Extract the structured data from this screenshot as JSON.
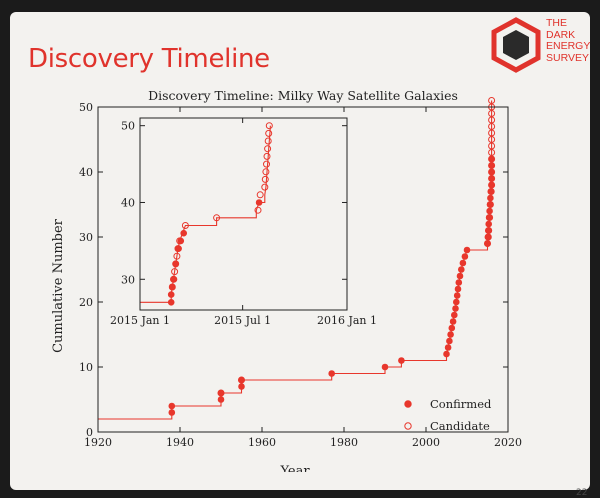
{
  "slide": {
    "title": "Discovery Timeline",
    "logo_text": "THE\nDARK\nENERGY\nSURVEY",
    "page_number": "22"
  },
  "colors": {
    "accent": "#e0332c",
    "series": "#e8372c"
  },
  "chart_data": [
    {
      "type": "line",
      "title": "Discovery Timeline: Milky Way Satellite Galaxies",
      "xlabel": "Year",
      "ylabel": "Cumulative Number",
      "xlim": [
        1920,
        2020
      ],
      "ylim": [
        0,
        50
      ],
      "xticks": [
        1920,
        1940,
        1960,
        1980,
        2000,
        2020
      ],
      "yticks": [
        0,
        10,
        20,
        30,
        40,
        50
      ],
      "legend": "bottom-right",
      "step": [
        [
          1920,
          2
        ],
        [
          1938,
          2
        ],
        [
          1938,
          4
        ],
        [
          1950,
          4
        ],
        [
          1950,
          6
        ],
        [
          1955,
          6
        ],
        [
          1955,
          8
        ],
        [
          1977,
          8
        ],
        [
          1977,
          9
        ],
        [
          1990,
          9
        ],
        [
          1990,
          10
        ],
        [
          1994,
          10
        ],
        [
          1994,
          11
        ],
        [
          2005,
          11
        ],
        [
          2005,
          12
        ],
        [
          2005.4,
          13
        ],
        [
          2005.7,
          14
        ],
        [
          2006,
          15
        ],
        [
          2006.3,
          16
        ],
        [
          2006.6,
          17
        ],
        [
          2006.9,
          18
        ],
        [
          2007.2,
          19
        ],
        [
          2007.4,
          20
        ],
        [
          2007.6,
          21
        ],
        [
          2007.8,
          22
        ],
        [
          2008,
          23
        ],
        [
          2008.3,
          24
        ],
        [
          2008.6,
          25
        ],
        [
          2009,
          26
        ],
        [
          2009.5,
          27
        ],
        [
          2010,
          28
        ],
        [
          2015,
          28
        ],
        [
          2015,
          29
        ],
        [
          2015.2,
          30
        ],
        [
          2015.3,
          31
        ],
        [
          2015.4,
          32
        ],
        [
          2015.5,
          33
        ],
        [
          2015.6,
          34
        ],
        [
          2015.7,
          35
        ],
        [
          2015.8,
          36
        ],
        [
          2015.9,
          37
        ],
        [
          2016,
          38
        ],
        [
          2016,
          39
        ],
        [
          2016,
          40
        ],
        [
          2016,
          41
        ],
        [
          2016,
          42
        ],
        [
          2016,
          43
        ],
        [
          2016,
          44
        ],
        [
          2016,
          45
        ],
        [
          2016,
          46
        ],
        [
          2016,
          47
        ],
        [
          2016,
          48
        ],
        [
          2016,
          49
        ],
        [
          2016,
          50
        ],
        [
          2016,
          51
        ]
      ],
      "series": [
        {
          "name": "Confirmed",
          "marker": "filled",
          "points": [
            [
              1938,
              3
            ],
            [
              1938,
              4
            ],
            [
              1950,
              5
            ],
            [
              1950,
              6
            ],
            [
              1955,
              7
            ],
            [
              1955,
              8
            ],
            [
              1977,
              9
            ],
            [
              1990,
              10
            ],
            [
              1994,
              11
            ],
            [
              2005,
              12
            ],
            [
              2005.4,
              13
            ],
            [
              2005.7,
              14
            ],
            [
              2006,
              15
            ],
            [
              2006.3,
              16
            ],
            [
              2006.6,
              17
            ],
            [
              2006.9,
              18
            ],
            [
              2007.2,
              19
            ],
            [
              2007.4,
              20
            ],
            [
              2007.6,
              21
            ],
            [
              2007.8,
              22
            ],
            [
              2008,
              23
            ],
            [
              2008.3,
              24
            ],
            [
              2008.6,
              25
            ],
            [
              2009,
              26
            ],
            [
              2009.5,
              27
            ],
            [
              2010,
              28
            ],
            [
              2015,
              29
            ],
            [
              2015.1,
              30
            ],
            [
              2015.2,
              31
            ],
            [
              2015.3,
              32
            ],
            [
              2015.4,
              33
            ],
            [
              2015.5,
              34
            ],
            [
              2015.6,
              35
            ],
            [
              2015.7,
              36
            ],
            [
              2015.8,
              37
            ],
            [
              2016,
              38
            ],
            [
              2016,
              39
            ],
            [
              2016,
              40
            ],
            [
              2016,
              41
            ],
            [
              2016,
              42
            ]
          ]
        },
        {
          "name": "Candidate",
          "marker": "open",
          "points": [
            [
              1950,
              6
            ],
            [
              1955,
              8
            ],
            [
              2015,
              29
            ],
            [
              2015.2,
              30
            ],
            [
              2015.3,
              31
            ],
            [
              2015.5,
              33
            ],
            [
              2015.7,
              35
            ],
            [
              2015.9,
              37
            ],
            [
              2016,
              38
            ],
            [
              2016,
              39
            ],
            [
              2016,
              40
            ],
            [
              2016,
              41
            ],
            [
              2016,
              42
            ],
            [
              2016,
              43
            ],
            [
              2016,
              44
            ],
            [
              2016,
              45
            ],
            [
              2016,
              46
            ],
            [
              2016,
              47
            ],
            [
              2016,
              48
            ],
            [
              2016,
              49
            ],
            [
              2016,
              50
            ],
            [
              2016,
              51
            ]
          ]
        }
      ]
    },
    {
      "type": "line",
      "title": "",
      "xlabel": "",
      "ylabel": "",
      "xlim": [
        0,
        365
      ],
      "ylim": [
        26,
        51
      ],
      "xticks": [
        0,
        181,
        365
      ],
      "xtick_labels": [
        "2015 Jan 1",
        "2015 Jul 1",
        "2016 Jan 1"
      ],
      "yticks": [
        30,
        40,
        50
      ],
      "step": [
        [
          0,
          27
        ],
        [
          55,
          27
        ],
        [
          55,
          28
        ],
        [
          57,
          29
        ],
        [
          59,
          30
        ],
        [
          61,
          31
        ],
        [
          63,
          32
        ],
        [
          65,
          33
        ],
        [
          67,
          34
        ],
        [
          70,
          35
        ],
        [
          75,
          36
        ],
        [
          80,
          37
        ],
        [
          135,
          37
        ],
        [
          135,
          38
        ],
        [
          205,
          38
        ],
        [
          205,
          39
        ],
        [
          210,
          40
        ],
        [
          220,
          40
        ],
        [
          220,
          41
        ],
        [
          222,
          42
        ],
        [
          223,
          43
        ],
        [
          224,
          44
        ],
        [
          225,
          45
        ],
        [
          226,
          46
        ],
        [
          227,
          47
        ],
        [
          228,
          48
        ],
        [
          229,
          49
        ],
        [
          230,
          50
        ]
      ],
      "series": [
        {
          "name": "Confirmed",
          "marker": "filled",
          "points": [
            [
              55,
              27
            ],
            [
              55,
              28
            ],
            [
              57,
              29
            ],
            [
              60,
              30
            ],
            [
              63,
              32
            ],
            [
              68,
              34
            ],
            [
              72,
              35
            ],
            [
              77,
              36
            ],
            [
              210,
              40
            ]
          ]
        },
        {
          "name": "Candidate",
          "marker": "open",
          "points": [
            [
              57,
              29
            ],
            [
              59,
              30
            ],
            [
              61,
              31
            ],
            [
              63,
              32
            ],
            [
              65,
              33
            ],
            [
              67,
              34
            ],
            [
              70,
              35
            ],
            [
              80,
              37
            ],
            [
              135,
              38
            ],
            [
              208,
              39
            ],
            [
              212,
              41
            ],
            [
              220,
              42
            ],
            [
              221,
              43
            ],
            [
              222,
              44
            ],
            [
              223,
              45
            ],
            [
              224,
              46
            ],
            [
              225,
              47
            ],
            [
              226,
              48
            ],
            [
              227,
              49
            ],
            [
              228,
              50
            ]
          ]
        }
      ]
    }
  ]
}
